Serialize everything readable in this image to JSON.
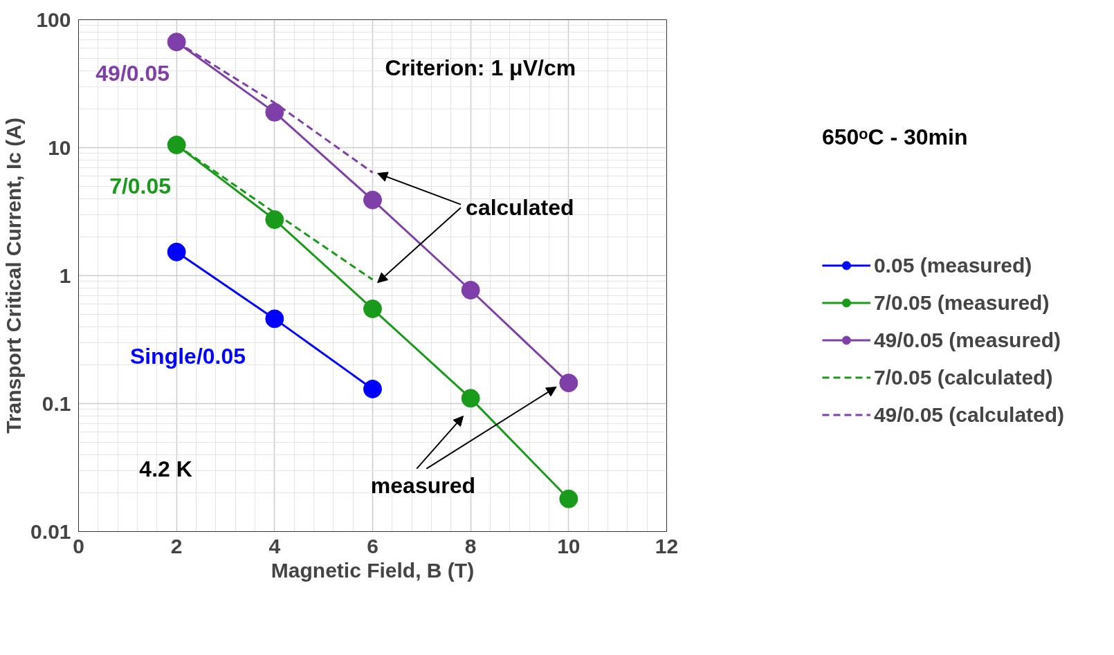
{
  "chart_data": {
    "type": "line",
    "xlabel": "Magnetic Field, B (T)",
    "ylabel": "Transport Critical Current, Ic (A)",
    "xlim": [
      0,
      12
    ],
    "xticks": [
      0,
      2,
      4,
      6,
      8,
      10,
      12
    ],
    "ylim": [
      0.01,
      100
    ],
    "yticks": [
      0.01,
      0.1,
      1,
      10,
      100
    ],
    "log": "y",
    "grid": true,
    "legend": "right",
    "series": [
      {
        "name": "0.05 (measured)",
        "color": "#0000ff",
        "marker": "circle",
        "line_style": "solid",
        "x": [
          2,
          4,
          6
        ],
        "values": [
          1.53,
          0.46,
          0.13
        ]
      },
      {
        "name": "7/0.05 (measured)",
        "color": "#1a9a1a",
        "marker": "circle",
        "line_style": "solid",
        "x": [
          2,
          4,
          6,
          8,
          10
        ],
        "values": [
          10.5,
          2.74,
          0.55,
          0.11,
          0.018
        ]
      },
      {
        "name": "49/0.05 (measured)",
        "color": "#7f3fa8",
        "marker": "circle",
        "line_style": "solid",
        "x": [
          2,
          4,
          6,
          8,
          10
        ],
        "values": [
          67,
          18.9,
          3.9,
          0.77,
          0.145
        ]
      },
      {
        "name": "7/0.05 (calculated)",
        "color": "#1a9a1a",
        "marker": "none",
        "line_style": "dashed",
        "x": [
          2,
          4,
          6
        ],
        "values": [
          10.5,
          3.1,
          0.93
        ]
      },
      {
        "name": "49/0.05 (calculated)",
        "color": "#7f3fa8",
        "marker": "none",
        "line_style": "dashed",
        "x": [
          2,
          4,
          6
        ],
        "values": [
          67,
          22.4,
          6.4
        ]
      }
    ],
    "annotations": [
      "Criterion: 1 μV/cm",
      "650ᵒC - 30min",
      "49/0.05",
      "7/0.05",
      "Single/0.05",
      "calculated",
      "measured",
      "4.2 K"
    ]
  }
}
